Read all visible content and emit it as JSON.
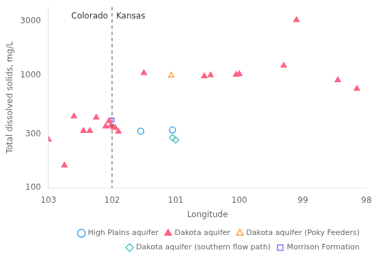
{
  "chart_data": {
    "type": "scatter",
    "xlabel": "Longitude",
    "ylabel": "Total dissolved solids, mg/L",
    "xlim": [
      103,
      98
    ],
    "ylim": [
      100,
      4000
    ],
    "xticks": [
      103,
      102,
      101,
      100,
      99,
      98
    ],
    "yticks": [
      100,
      300,
      1000,
      3000
    ],
    "log": "y",
    "grid": false,
    "legend": "lower right",
    "series": [
      {
        "name": "High Plains aquifer",
        "marker": "open-circle",
        "x": [
          101.55,
          101.05
        ],
        "values": [
          318,
          325
        ]
      },
      {
        "name": "Dakota aquifer",
        "marker": "triangle",
        "x": [
          103.0,
          102.75,
          102.6,
          102.45,
          102.35,
          102.25,
          102.1,
          102.05,
          102.02,
          101.98,
          101.95,
          101.9,
          101.5,
          100.55,
          100.45,
          100.05,
          100.0,
          99.3,
          99.1,
          98.45,
          98.15
        ],
        "values": [
          268,
          158,
          430,
          320,
          320,
          420,
          350,
          390,
          355,
          345,
          340,
          315,
          1040,
          975,
          995,
          1005,
          1020,
          1210,
          3060,
          900,
          755
        ]
      },
      {
        "name": "Dakota aquifer (Poky Feeders)",
        "marker": "open-triangle",
        "x": [
          101.07
        ],
        "values": [
          990
        ]
      },
      {
        "name": "Dakota aquifer (southern flow path)",
        "marker": "open-diamond",
        "x": [
          101.05,
          101.0
        ],
        "values": [
          278,
          265
        ]
      },
      {
        "name": "Morrison Formation",
        "marker": "open-square",
        "x": [
          102.0
        ],
        "values": [
          400
        ]
      }
    ],
    "annotations": [
      {
        "x": 102,
        "line_style": "dashed",
        "labels": [
          "Colorado",
          "Kansas"
        ]
      }
    ]
  }
}
